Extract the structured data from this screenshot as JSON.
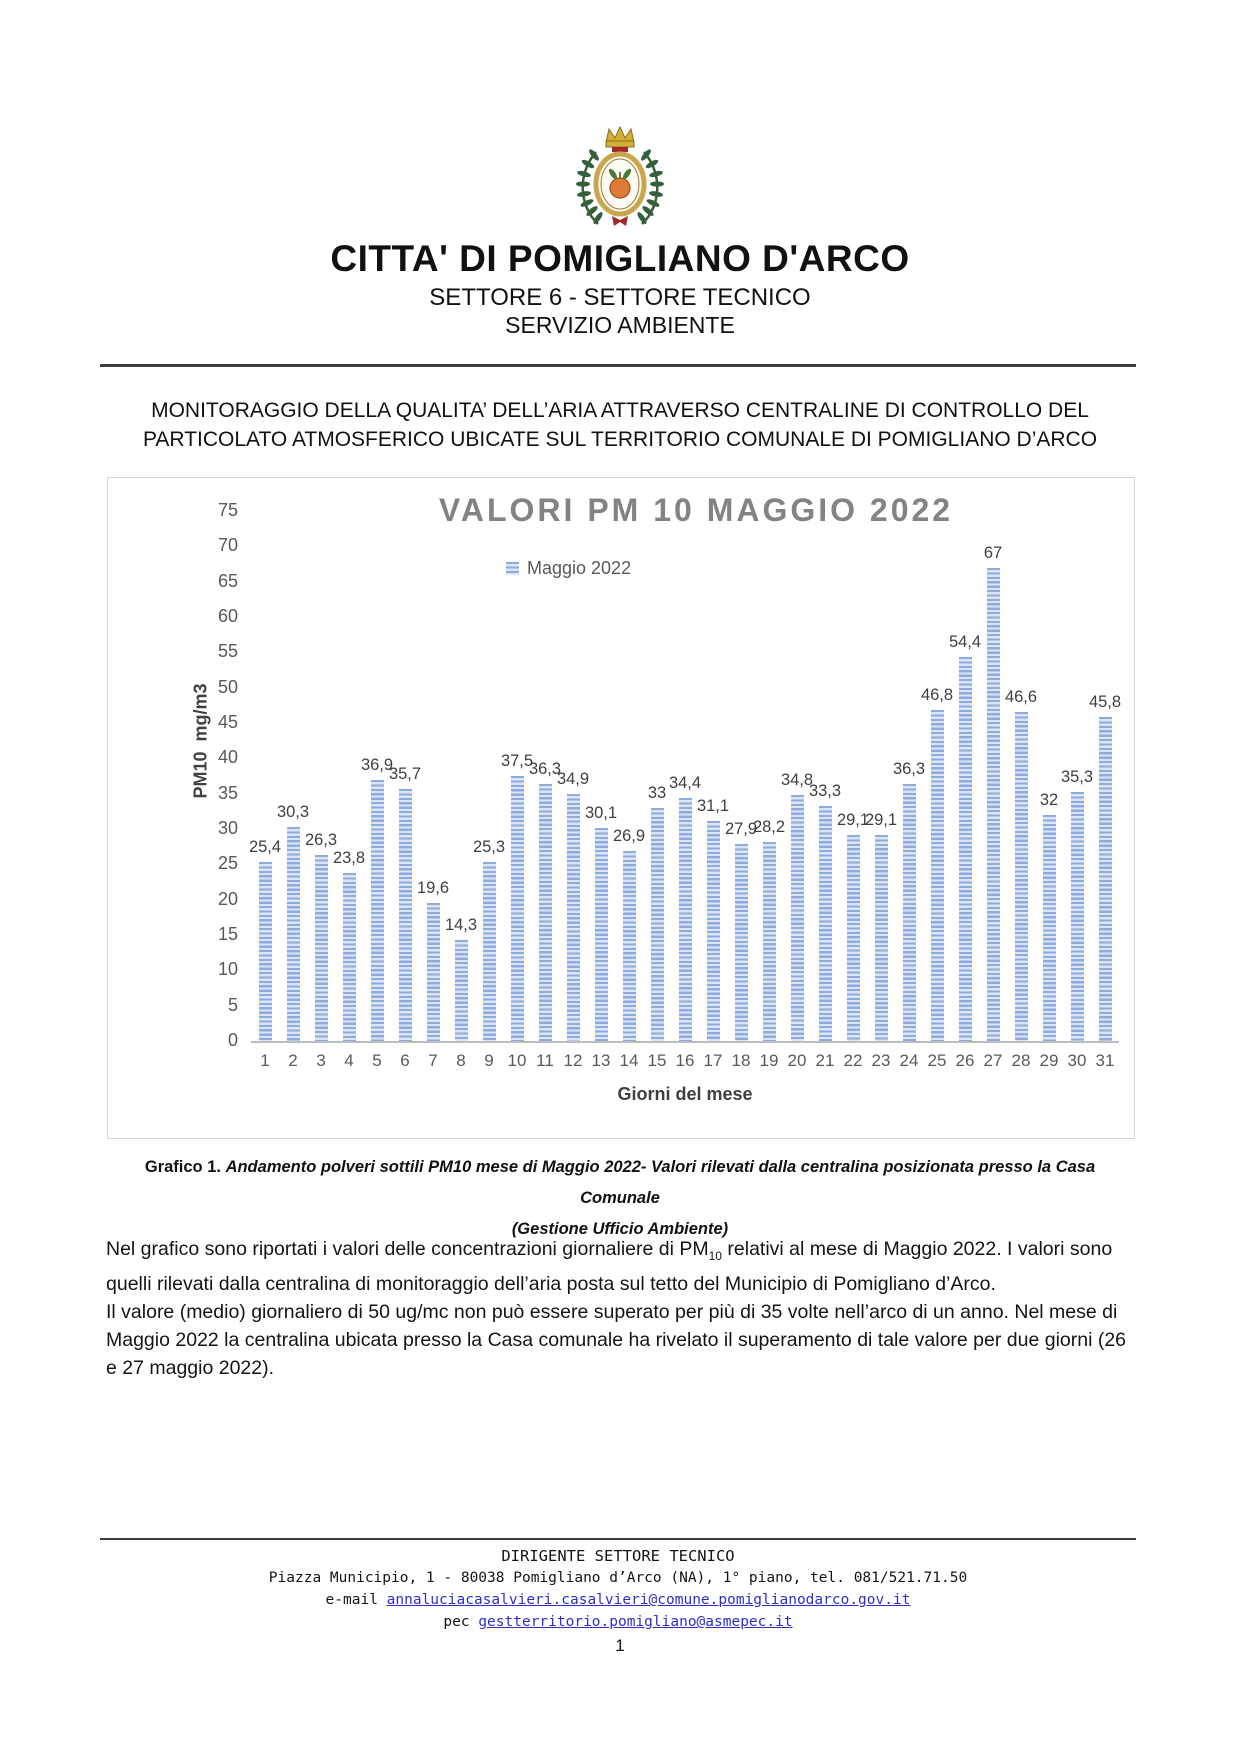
{
  "header": {
    "title": "CITTA' DI POMIGLIANO D'ARCO",
    "subtitle1": "SETTORE 6 - SETTORE TECNICO",
    "subtitle2": "SERVIZIO AMBIENTE"
  },
  "heading": {
    "lines": [
      "MONITORAGGIO DELLA QUALITA’ DELL’ARIA ATTRAVERSO CENTRALINE DI CONTROLLO DEL",
      "PARTICOLATO ATMOSFERICO UBICATE SUL TERRITORIO COMUNALE DI POMIGLIANO D’ARCO"
    ]
  },
  "chart_data": {
    "type": "bar",
    "title": "VALORI PM 10 MAGGIO 2022",
    "legend": "Maggio 2022",
    "legend_position": "top-center",
    "xlabel": "Giorni del mese",
    "ylabel": "PM10  mg/m3",
    "ylim": [
      0,
      75
    ],
    "ytick_step": 5,
    "grid": false,
    "categories": [
      1,
      2,
      3,
      4,
      5,
      6,
      7,
      8,
      9,
      10,
      11,
      12,
      13,
      14,
      15,
      16,
      17,
      18,
      19,
      20,
      21,
      22,
      23,
      24,
      25,
      26,
      27,
      28,
      29,
      30,
      31
    ],
    "values": [
      25.4,
      30.3,
      26.3,
      23.8,
      36.9,
      35.7,
      19.6,
      14.3,
      25.3,
      37.5,
      36.3,
      34.9,
      30.1,
      26.9,
      33,
      34.4,
      31.1,
      27.9,
      28.2,
      34.8,
      33.3,
      29.1,
      29.1,
      36.3,
      46.8,
      54.4,
      67,
      46.6,
      32,
      35.3,
      45.8
    ],
    "value_labels": [
      "25,4",
      "30,3",
      "26,3",
      "23,8",
      "36,9",
      "35,7",
      "19,6",
      "14,3",
      "25,3",
      "37,5",
      "36,3",
      "34,9",
      "30,1",
      "26,9",
      "33",
      "34,4",
      "31,1",
      "27,9",
      "28,2",
      "34,8",
      "33,3",
      "29,1",
      "29,1",
      "36,3",
      "46,8",
      "54,4",
      "67",
      "46,6",
      "32",
      "35,3",
      "45,8"
    ],
    "bar_color": "#8faadc",
    "bar_stripe_color": "#dbe5f4",
    "title_color": "#838383"
  },
  "caption": {
    "prefix": "Grafico 1. ",
    "line1": "Andamento polveri sottili PM10 mese di Maggio 2022- Valori rilevati dalla centralina posizionata presso la Casa Comunale",
    "line2": "(Gestione Ufficio Ambiente)"
  },
  "body": {
    "p1_before": "Nel grafico sono riportati i valori delle concentrazioni giornaliere di PM",
    "p1_sub": "10",
    "p1_after": " relativi al mese di Maggio 2022. I valori sono quelli rilevati dalla centralina di monitoraggio dell’aria posta sul tetto del Municipio di Pomigliano d’Arco.",
    "p2": "Il valore (medio) giornaliero di 50 ug/mc non può essere superato per più di 35 volte nell’arco di un anno. Nel mese di Maggio 2022 la centralina ubicata presso la Casa comunale ha rivelato il superamento di tale valore per due giorni (26 e 27 maggio 2022)."
  },
  "footer": {
    "line1": "DIRIGENTE SETTORE TECNICO",
    "line2": "Piazza Municipio, 1 - 80038 Pomigliano d’Arco (NA), 1° piano, tel. 081/521.71.50",
    "email_label": "e-mail ",
    "email_link": "annaluciacasalvieri.casalvieri@comune.pomiglianodarco.gov.it",
    "pec_label": "pec ",
    "pec_link": "gestterritorio.pomigliano@asmepec.it",
    "link_color": "#2e2ec9"
  },
  "page_number": "1"
}
